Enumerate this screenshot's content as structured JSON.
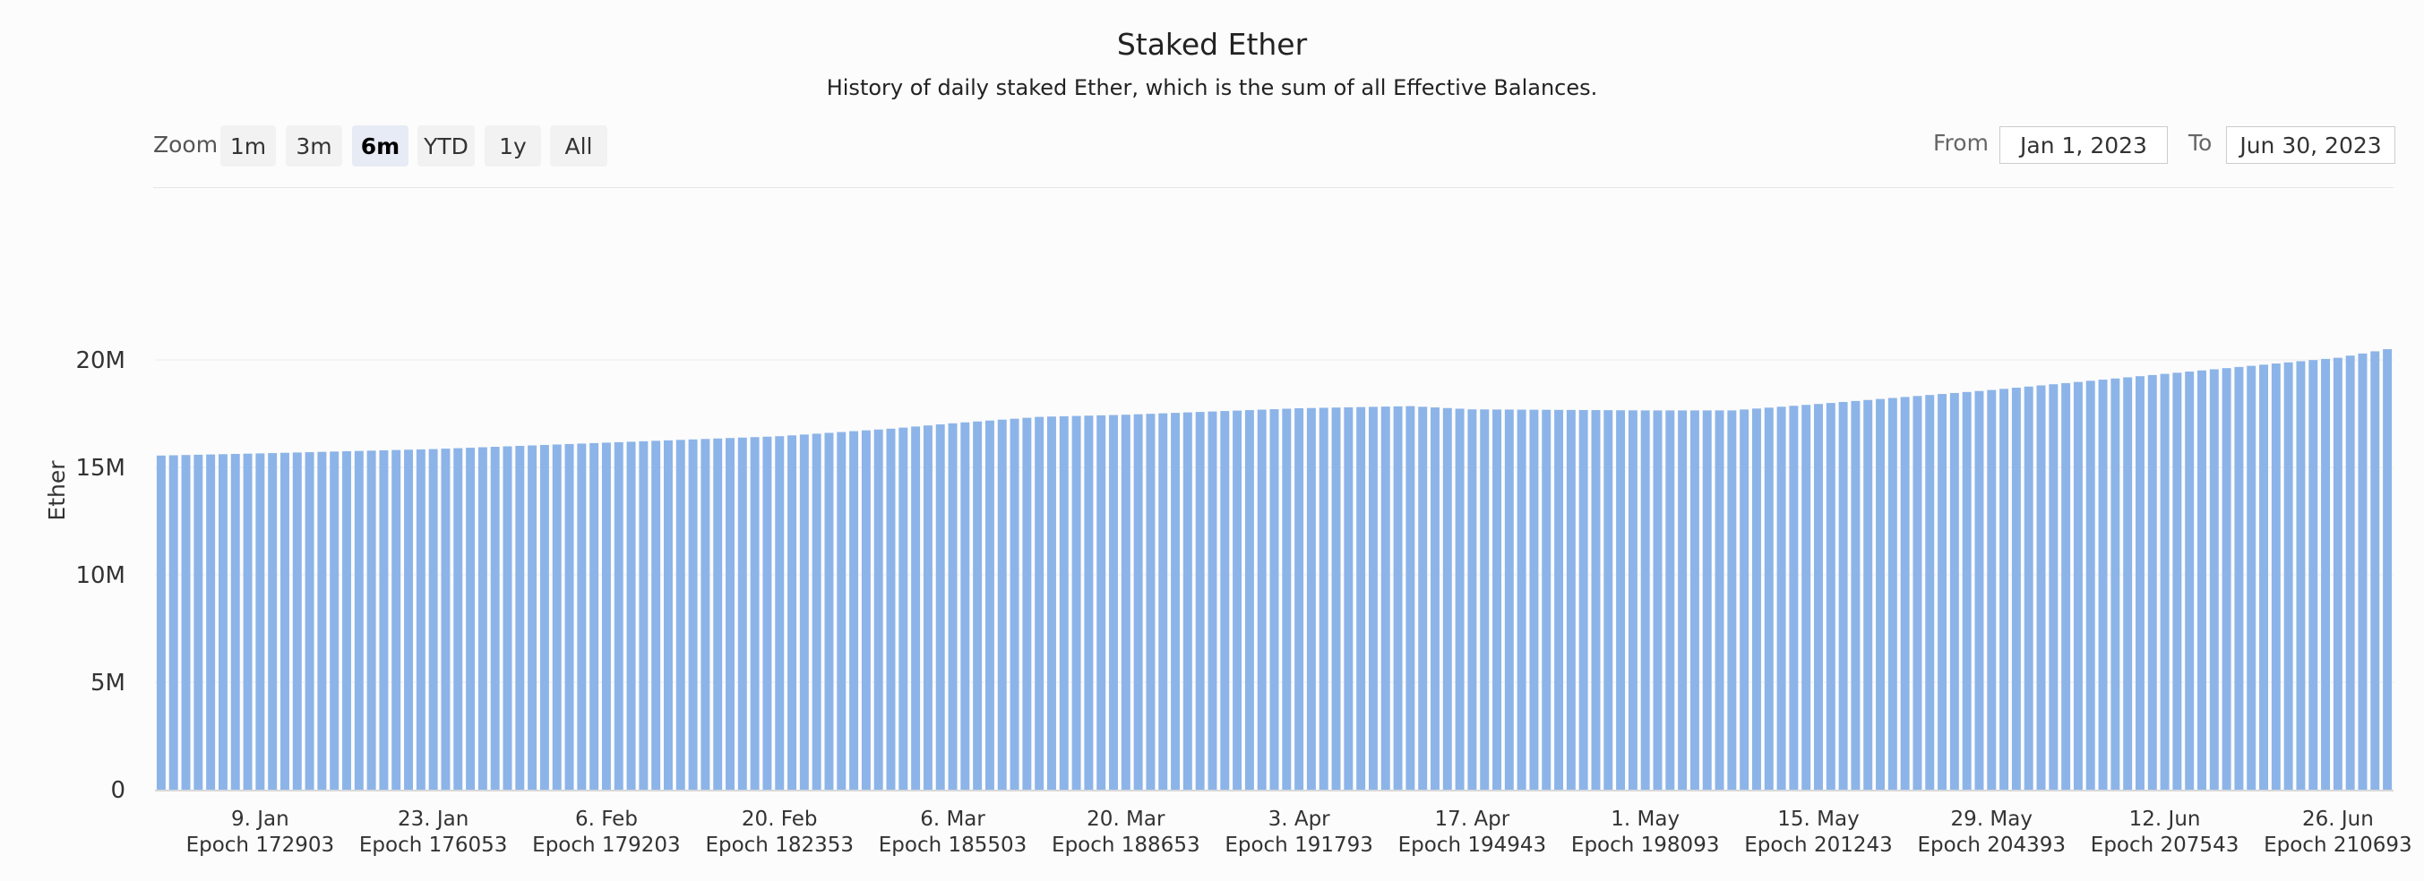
{
  "chart_data": {
    "type": "bar",
    "title": "Staked Ether",
    "subtitle": "History of daily staked Ether, which is the sum of all Effective Balances.",
    "xlabel": "",
    "ylabel": "Ether",
    "ylim": [
      0,
      23000000
    ],
    "grid": true,
    "legend": "none",
    "bar_color": "#8cb4e8",
    "y_ticks": [
      {
        "value": 0,
        "label": "0"
      },
      {
        "value": 5000000,
        "label": "5M"
      },
      {
        "value": 10000000,
        "label": "10M"
      },
      {
        "value": 15000000,
        "label": "15M"
      },
      {
        "value": 20000000,
        "label": "20M"
      }
    ],
    "x_range": [
      "2023-01-01",
      "2023-06-30"
    ],
    "x_ticks": [
      {
        "date": "2023-01-09",
        "label": "9. Jan",
        "epoch": "Epoch 172903"
      },
      {
        "date": "2023-01-23",
        "label": "23. Jan",
        "epoch": "Epoch 176053"
      },
      {
        "date": "2023-02-06",
        "label": "6. Feb",
        "epoch": "Epoch 179203"
      },
      {
        "date": "2023-02-20",
        "label": "20. Feb",
        "epoch": "Epoch 182353"
      },
      {
        "date": "2023-03-06",
        "label": "6. Mar",
        "epoch": "Epoch 185503"
      },
      {
        "date": "2023-03-20",
        "label": "20. Mar",
        "epoch": "Epoch 188653"
      },
      {
        "date": "2023-04-03",
        "label": "3. Apr",
        "epoch": "Epoch 191793"
      },
      {
        "date": "2023-04-17",
        "label": "17. Apr",
        "epoch": "Epoch 194943"
      },
      {
        "date": "2023-05-01",
        "label": "1. May",
        "epoch": "Epoch 198093"
      },
      {
        "date": "2023-05-15",
        "label": "15. May",
        "epoch": "Epoch 201243"
      },
      {
        "date": "2023-05-29",
        "label": "29. May",
        "epoch": "Epoch 204393"
      },
      {
        "date": "2023-06-12",
        "label": "12. Jun",
        "epoch": "Epoch 207543"
      },
      {
        "date": "2023-06-26",
        "label": "26. Jun",
        "epoch": "Epoch 210693"
      }
    ],
    "series_keypoints": [
      {
        "date": "2023-01-01",
        "value": 15550000
      },
      {
        "date": "2023-01-09",
        "value": 15650000
      },
      {
        "date": "2023-01-23",
        "value": 15850000
      },
      {
        "date": "2023-02-06",
        "value": 16150000
      },
      {
        "date": "2023-02-20",
        "value": 16450000
      },
      {
        "date": "2023-03-01",
        "value": 16800000
      },
      {
        "date": "2023-03-06",
        "value": 17050000
      },
      {
        "date": "2023-03-13",
        "value": 17350000
      },
      {
        "date": "2023-03-20",
        "value": 17450000
      },
      {
        "date": "2023-04-03",
        "value": 17750000
      },
      {
        "date": "2023-04-12",
        "value": 17850000
      },
      {
        "date": "2023-04-17",
        "value": 17700000
      },
      {
        "date": "2023-05-01",
        "value": 17650000
      },
      {
        "date": "2023-05-08",
        "value": 17650000
      },
      {
        "date": "2023-05-15",
        "value": 17950000
      },
      {
        "date": "2023-05-29",
        "value": 18600000
      },
      {
        "date": "2023-06-12",
        "value": 19350000
      },
      {
        "date": "2023-06-26",
        "value": 20100000
      },
      {
        "date": "2023-06-30",
        "value": 20500000
      }
    ]
  },
  "controls": {
    "zoom_label": "Zoom",
    "zoom_buttons": [
      {
        "label": "1m",
        "active": false
      },
      {
        "label": "3m",
        "active": false
      },
      {
        "label": "6m",
        "active": true
      },
      {
        "label": "YTD",
        "active": false
      },
      {
        "label": "1y",
        "active": false
      },
      {
        "label": "All",
        "active": false
      }
    ],
    "from_label": "From",
    "from_value": "Jan 1, 2023",
    "to_label": "To",
    "to_value": "Jun 30, 2023"
  }
}
